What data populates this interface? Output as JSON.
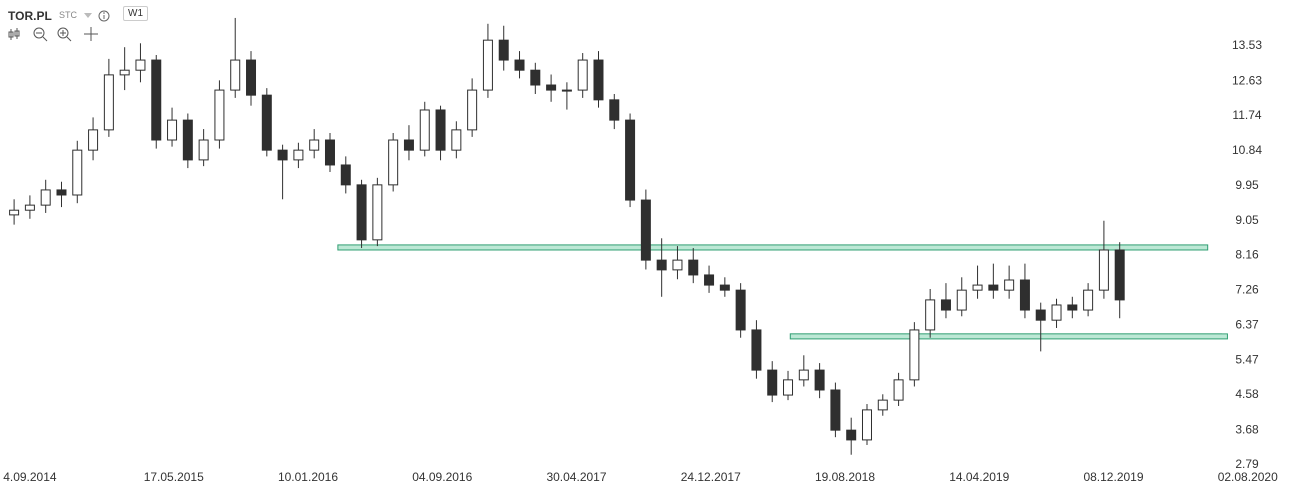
{
  "toolbar": {
    "symbol": "TOR.PL",
    "source": "STC",
    "interval": "W1"
  },
  "chart_data": {
    "type": "candlestick",
    "x": [
      "2014-08-07",
      "2014-09-04",
      "2014-10-02",
      "2014-10-30",
      "2014-11-27",
      "2014-12-25",
      "2015-01-22",
      "2015-02-19",
      "2015-03-19",
      "2015-04-16",
      "2015-05-14",
      "2015-06-11",
      "2015-07-09",
      "2015-08-06",
      "2015-09-03",
      "2015-10-01",
      "2015-10-29",
      "2015-11-26",
      "2015-12-24",
      "2016-01-21",
      "2016-02-18",
      "2016-03-17",
      "2016-04-14",
      "2016-05-12",
      "2016-06-09",
      "2016-07-07",
      "2016-08-04",
      "2016-09-01",
      "2016-09-29",
      "2016-10-27",
      "2016-11-24",
      "2016-12-22",
      "2017-01-19",
      "2017-02-16",
      "2017-03-16",
      "2017-04-13",
      "2017-05-11",
      "2017-06-08",
      "2017-07-06",
      "2017-08-03",
      "2017-08-31",
      "2017-09-28",
      "2017-10-26",
      "2017-11-23",
      "2017-12-21",
      "2018-01-18",
      "2018-02-15",
      "2018-03-15",
      "2018-04-12",
      "2018-05-10",
      "2018-06-07",
      "2018-07-05",
      "2018-08-02",
      "2018-08-30",
      "2018-09-27",
      "2018-10-25",
      "2018-11-22",
      "2018-12-20",
      "2019-01-17",
      "2019-02-14",
      "2019-03-14",
      "2019-04-11",
      "2019-05-09",
      "2019-06-06",
      "2019-07-04",
      "2019-08-01",
      "2019-08-29",
      "2019-09-26",
      "2019-10-24",
      "2019-11-21",
      "2019-12-19"
    ],
    "open": [
      9.2,
      9.32,
      9.45,
      9.84,
      9.71,
      10.86,
      11.38,
      12.79,
      12.91,
      13.17,
      11.12,
      11.63,
      10.61,
      11.12,
      12.4,
      13.17,
      12.27,
      10.86,
      10.61,
      10.86,
      11.12,
      10.48,
      9.97,
      8.56,
      9.97,
      11.12,
      10.86,
      11.89,
      10.86,
      11.38,
      12.4,
      13.68,
      13.17,
      12.91,
      12.53,
      12.4,
      12.4,
      13.17,
      12.15,
      11.63,
      9.58,
      8.04,
      7.79,
      8.04,
      7.66,
      7.4,
      7.27,
      6.25,
      5.22,
      4.58,
      4.97,
      5.22,
      4.71,
      3.68,
      3.43,
      4.2,
      4.45,
      4.97,
      6.25,
      7.02,
      6.76,
      7.27,
      7.4,
      7.27,
      7.53,
      6.76,
      6.5,
      6.89,
      6.76,
      7.27,
      8.3
    ],
    "high": [
      9.6,
      9.7,
      10.1,
      10.05,
      11.1,
      11.7,
      13.2,
      13.5,
      13.6,
      13.3,
      11.95,
      11.8,
      11.4,
      12.65,
      14.25,
      13.4,
      12.45,
      11.0,
      11.05,
      11.4,
      11.3,
      10.7,
      10.1,
      10.15,
      11.3,
      11.5,
      12.1,
      12.0,
      11.6,
      12.7,
      14.1,
      14.05,
      13.4,
      13.1,
      12.8,
      12.6,
      13.35,
      13.4,
      12.3,
      11.8,
      9.85,
      8.6,
      8.4,
      8.35,
      7.9,
      7.6,
      7.45,
      6.5,
      5.45,
      5.2,
      5.6,
      5.4,
      4.9,
      4.0,
      4.35,
      4.6,
      5.15,
      6.45,
      7.3,
      7.45,
      7.6,
      7.9,
      7.95,
      7.9,
      7.95,
      6.95,
      7.05,
      7.1,
      7.45,
      9.05,
      8.5
    ],
    "low": [
      8.95,
      9.1,
      9.25,
      9.4,
      9.5,
      10.6,
      11.2,
      12.4,
      12.6,
      10.9,
      10.95,
      10.4,
      10.45,
      10.9,
      12.2,
      12.0,
      10.7,
      9.6,
      10.4,
      10.65,
      10.3,
      9.75,
      8.35,
      8.4,
      9.8,
      10.6,
      10.7,
      10.6,
      10.65,
      11.2,
      12.2,
      12.9,
      12.7,
      12.3,
      12.1,
      11.9,
      12.2,
      11.95,
      11.4,
      9.4,
      7.8,
      7.1,
      7.55,
      7.45,
      7.2,
      7.1,
      6.05,
      5.0,
      4.4,
      4.45,
      4.8,
      4.5,
      3.5,
      3.05,
      3.3,
      4.05,
      4.3,
      4.8,
      6.05,
      6.55,
      6.6,
      7.05,
      7.05,
      7.05,
      6.55,
      5.7,
      6.3,
      6.55,
      6.6,
      7.05,
      6.55
    ],
    "close": [
      9.32,
      9.45,
      9.84,
      9.71,
      10.86,
      11.38,
      12.79,
      12.91,
      13.17,
      11.12,
      11.63,
      10.61,
      11.12,
      12.4,
      13.17,
      12.27,
      10.86,
      10.61,
      10.86,
      11.12,
      10.48,
      9.97,
      8.56,
      9.97,
      11.12,
      10.86,
      11.89,
      10.86,
      11.38,
      12.4,
      13.68,
      13.17,
      12.91,
      12.53,
      12.4,
      12.4,
      13.17,
      12.15,
      11.63,
      9.58,
      8.04,
      7.79,
      8.04,
      7.66,
      7.4,
      7.27,
      6.25,
      5.22,
      4.58,
      4.97,
      5.22,
      4.71,
      3.68,
      3.43,
      4.2,
      4.45,
      4.97,
      6.25,
      7.02,
      6.76,
      7.27,
      7.4,
      7.27,
      7.53,
      6.76,
      6.5,
      6.89,
      6.76,
      7.27,
      8.3,
      7.02
    ],
    "up_color": "#ffffff",
    "down_color": "#2f2f2f",
    "outline_color": "#2f2f2f",
    "zones": [
      {
        "x": [
          "2016-03-03",
          "2020-05-23"
        ],
        "y": [
          8.3,
          8.43
        ]
      },
      {
        "x": [
          "2018-05-14",
          "2020-06-27"
        ],
        "y": [
          6.02,
          6.15
        ]
      }
    ],
    "zone_color": "#8fd9b9",
    "zone_outline": "#2f9e72",
    "xlim": [
      "2014-07-13",
      "2020-10-23"
    ],
    "xticks": [
      {
        "value": "2014-09-04",
        "label": "4.09.2014"
      },
      {
        "value": "2015-05-17",
        "label": "17.05.2015"
      },
      {
        "value": "2016-01-10",
        "label": "10.01.2016"
      },
      {
        "value": "2016-09-04",
        "label": "04.09.2016"
      },
      {
        "value": "2017-04-30",
        "label": "30.04.2017"
      },
      {
        "value": "2017-12-24",
        "label": "24.12.2017"
      },
      {
        "value": "2018-08-19",
        "label": "19.08.2018"
      },
      {
        "value": "2019-04-14",
        "label": "14.04.2019"
      },
      {
        "value": "2019-12-08",
        "label": "08.12.2019"
      },
      {
        "value": "2020-08-02",
        "label": "02.08.2020"
      }
    ],
    "ylim": [
      2.12,
      14.71
    ],
    "yticks": [
      2.79,
      3.68,
      4.58,
      5.47,
      6.37,
      7.26,
      8.16,
      9.05,
      9.95,
      10.84,
      11.74,
      12.63,
      13.53
    ]
  }
}
